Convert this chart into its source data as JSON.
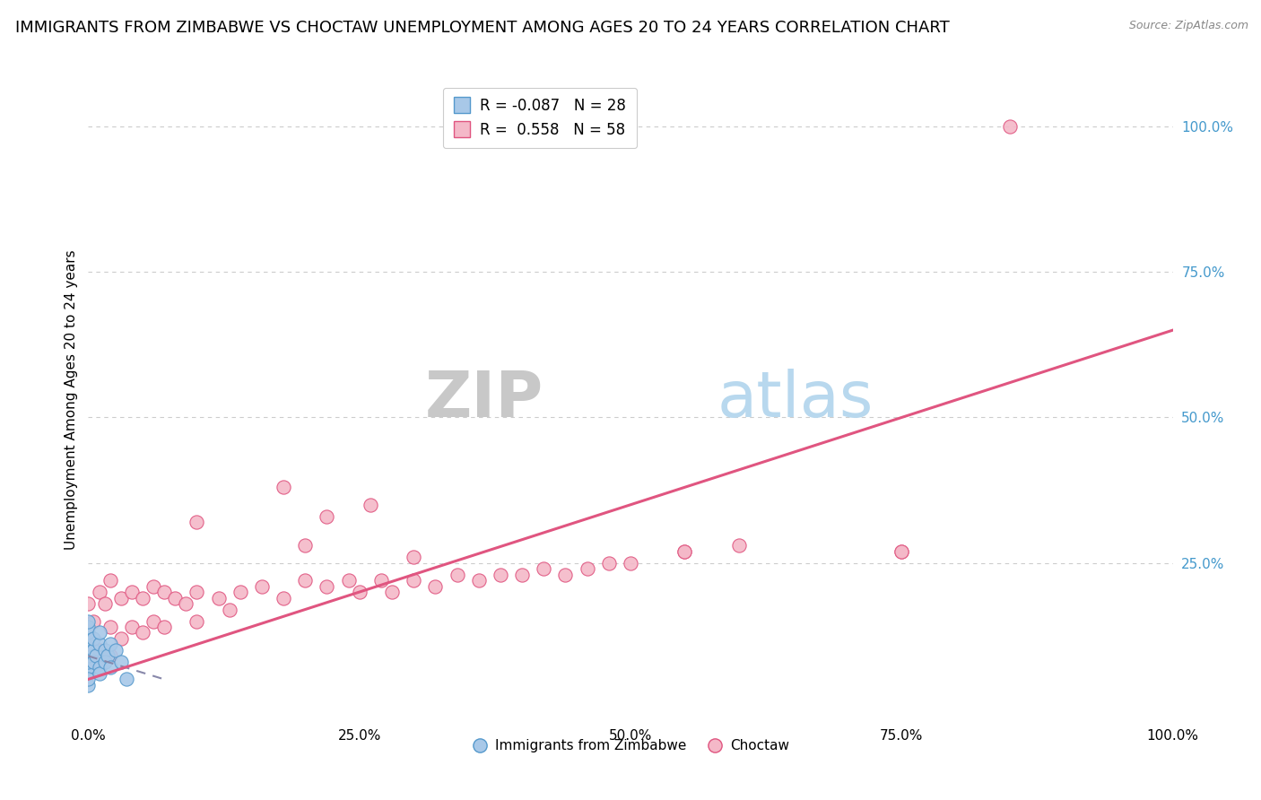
{
  "title": "IMMIGRANTS FROM ZIMBABWE VS CHOCTAW UNEMPLOYMENT AMONG AGES 20 TO 24 YEARS CORRELATION CHART",
  "source": "Source: ZipAtlas.com",
  "ylabel": "Unemployment Among Ages 20 to 24 years",
  "xlim": [
    0.0,
    1.0
  ],
  "ylim": [
    -0.02,
    1.08
  ],
  "xtick_labels": [
    "0.0%",
    "25.0%",
    "50.0%",
    "75.0%",
    "100.0%"
  ],
  "xtick_vals": [
    0.0,
    0.25,
    0.5,
    0.75,
    1.0
  ],
  "ytick_labels": [
    "25.0%",
    "50.0%",
    "75.0%",
    "100.0%"
  ],
  "ytick_vals": [
    0.25,
    0.5,
    0.75,
    1.0
  ],
  "legend_r1": "R = -0.087",
  "legend_n1": "N = 28",
  "legend_r2": "R =  0.558",
  "legend_n2": "N = 58",
  "color_blue": "#a8c8e8",
  "color_pink": "#f4b8c8",
  "color_blue_dark": "#5599cc",
  "color_pink_dark": "#e05580",
  "watermark_zip": "ZIP",
  "watermark_atlas": "atlas",
  "blue_scatter_x": [
    0.0,
    0.0,
    0.0,
    0.0,
    0.0,
    0.0,
    0.0,
    0.0,
    0.0,
    0.0,
    0.0,
    0.0,
    0.005,
    0.005,
    0.005,
    0.007,
    0.01,
    0.01,
    0.01,
    0.01,
    0.015,
    0.015,
    0.018,
    0.02,
    0.02,
    0.025,
    0.03,
    0.035
  ],
  "blue_scatter_y": [
    0.06,
    0.07,
    0.08,
    0.09,
    0.1,
    0.11,
    0.12,
    0.13,
    0.14,
    0.15,
    0.04,
    0.05,
    0.1,
    0.12,
    0.08,
    0.09,
    0.11,
    0.07,
    0.13,
    0.06,
    0.1,
    0.08,
    0.09,
    0.07,
    0.11,
    0.1,
    0.08,
    0.05
  ],
  "pink_scatter_x": [
    0.0,
    0.0,
    0.0,
    0.005,
    0.01,
    0.01,
    0.015,
    0.02,
    0.02,
    0.02,
    0.03,
    0.03,
    0.04,
    0.04,
    0.05,
    0.05,
    0.06,
    0.06,
    0.07,
    0.07,
    0.08,
    0.09,
    0.1,
    0.1,
    0.12,
    0.13,
    0.14,
    0.16,
    0.18,
    0.2,
    0.22,
    0.24,
    0.25,
    0.27,
    0.28,
    0.3,
    0.32,
    0.34,
    0.36,
    0.38,
    0.4,
    0.42,
    0.44,
    0.46,
    0.48,
    0.5,
    0.55,
    0.6,
    0.75,
    0.85,
    0.18,
    0.22,
    0.26,
    0.55,
    0.75,
    0.3,
    0.2,
    0.1
  ],
  "pink_scatter_y": [
    0.18,
    0.12,
    0.08,
    0.15,
    0.2,
    0.1,
    0.18,
    0.14,
    0.22,
    0.09,
    0.19,
    0.12,
    0.2,
    0.14,
    0.19,
    0.13,
    0.21,
    0.15,
    0.2,
    0.14,
    0.19,
    0.18,
    0.2,
    0.15,
    0.19,
    0.17,
    0.2,
    0.21,
    0.19,
    0.22,
    0.21,
    0.22,
    0.2,
    0.22,
    0.2,
    0.22,
    0.21,
    0.23,
    0.22,
    0.23,
    0.23,
    0.24,
    0.23,
    0.24,
    0.25,
    0.25,
    0.27,
    0.28,
    0.27,
    1.0,
    0.38,
    0.33,
    0.35,
    0.27,
    0.27,
    0.26,
    0.28,
    0.32
  ],
  "blue_trend_x": [
    0.0,
    0.07
  ],
  "blue_trend_y": [
    0.09,
    0.05
  ],
  "pink_trend_x": [
    0.0,
    1.0
  ],
  "pink_trend_y": [
    0.05,
    0.65
  ],
  "background_color": "#ffffff",
  "grid_color": "#cccccc",
  "title_fontsize": 13,
  "axis_fontsize": 11,
  "tick_fontsize": 11,
  "right_tick_color": "#4499cc"
}
